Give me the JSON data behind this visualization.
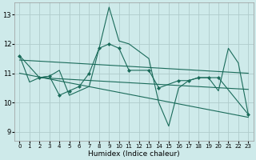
{
  "xlabel": "Humidex (Indice chaleur)",
  "xlim": [
    -0.5,
    23.5
  ],
  "ylim": [
    8.7,
    13.4
  ],
  "yticks": [
    9,
    10,
    11,
    12,
    13
  ],
  "xticks": [
    0,
    1,
    2,
    3,
    4,
    5,
    6,
    7,
    8,
    9,
    10,
    11,
    12,
    13,
    14,
    15,
    16,
    17,
    18,
    19,
    20,
    21,
    22,
    23
  ],
  "bg_color": "#ceeaea",
  "grid_color": "#b0cccc",
  "line_color": "#1a6b5a",
  "series1_x": [
    0,
    1,
    2,
    3,
    4,
    5,
    6,
    7,
    8,
    9,
    10,
    11,
    12,
    13,
    14,
    15,
    16,
    17,
    18,
    19,
    20,
    21,
    22,
    23
  ],
  "series1": [
    11.6,
    10.7,
    10.85,
    10.9,
    11.1,
    10.25,
    10.4,
    10.55,
    11.85,
    13.25,
    12.1,
    12.0,
    11.75,
    11.5,
    10.0,
    9.2,
    10.5,
    10.75,
    10.85,
    10.85,
    10.4,
    11.85,
    11.35,
    9.6
  ],
  "series2_x": [
    0,
    2,
    3,
    4,
    5,
    6,
    7,
    8,
    9,
    10,
    11,
    13,
    14,
    16,
    17,
    18,
    19,
    20,
    23
  ],
  "series2": [
    11.6,
    10.85,
    10.9,
    10.25,
    10.4,
    10.55,
    11.0,
    11.85,
    12.0,
    11.85,
    11.1,
    11.1,
    10.5,
    10.75,
    10.75,
    10.85,
    10.85,
    10.85,
    9.6
  ],
  "trend1_x": [
    0,
    23
  ],
  "trend1_y": [
    11.45,
    11.0
  ],
  "trend2_x": [
    0,
    23
  ],
  "trend2_y": [
    11.0,
    9.5
  ],
  "trend3_x": [
    2,
    23
  ],
  "trend3_y": [
    10.85,
    10.45
  ]
}
